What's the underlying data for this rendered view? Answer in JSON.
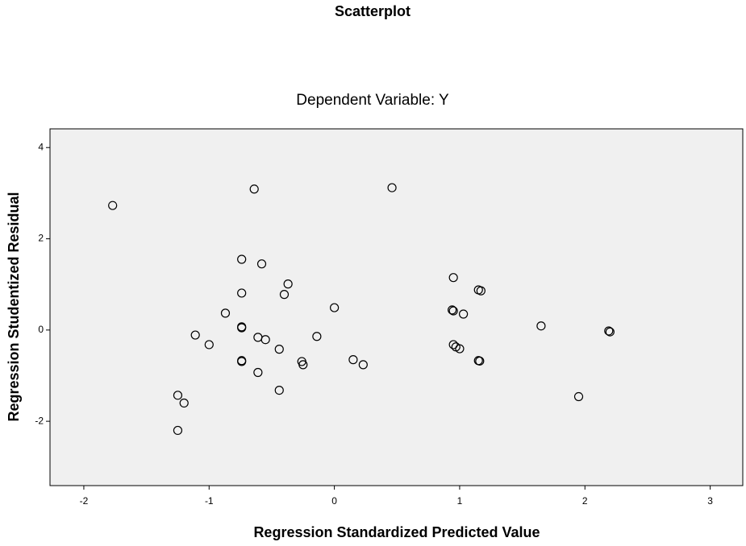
{
  "chart_data": {
    "type": "scatter",
    "title": "Scatterplot",
    "subtitle": "Dependent Variable: Y",
    "x_label": "Regression Standardized Predicted Value",
    "y_label": "Regression Studentized Residual",
    "x": [
      -1.77,
      -0.64,
      0.46,
      -0.74,
      -0.58,
      -0.37,
      -0.4,
      -0.74,
      -0.87,
      0.0,
      -0.74,
      -0.74,
      -1.11,
      -1.0,
      -0.61,
      -0.55,
      -0.14,
      -0.44,
      -0.74,
      -0.74,
      -0.44,
      -0.61,
      -0.26,
      -0.25,
      0.15,
      0.23,
      -1.25,
      -1.2,
      -1.25,
      0.95,
      0.94,
      0.95,
      1.03,
      1.15,
      1.17,
      0.95,
      0.97,
      1.0,
      1.15,
      1.16,
      1.65,
      2.19,
      2.2,
      1.95
    ],
    "y": [
      2.73,
      3.09,
      3.12,
      1.55,
      1.45,
      1.01,
      0.78,
      0.81,
      0.37,
      0.49,
      0.07,
      0.05,
      -0.11,
      -0.32,
      -0.16,
      -0.21,
      -0.14,
      -0.42,
      -0.67,
      -0.69,
      -1.32,
      -0.93,
      -0.69,
      -0.76,
      -0.65,
      -0.76,
      -1.43,
      -1.6,
      -2.2,
      1.15,
      0.44,
      0.42,
      0.35,
      0.88,
      0.86,
      -0.32,
      -0.37,
      -0.41,
      -0.67,
      -0.68,
      0.09,
      -0.02,
      -0.04,
      -1.46
    ],
    "color": "#000000",
    "xlim": [
      -2.27,
      3.26
    ],
    "ylim": [
      -3.41,
      4.41
    ],
    "xticks": [
      -2,
      -1,
      0,
      1,
      2,
      3
    ],
    "yticks": [
      -2,
      0,
      2,
      4
    ],
    "grid": false
  }
}
